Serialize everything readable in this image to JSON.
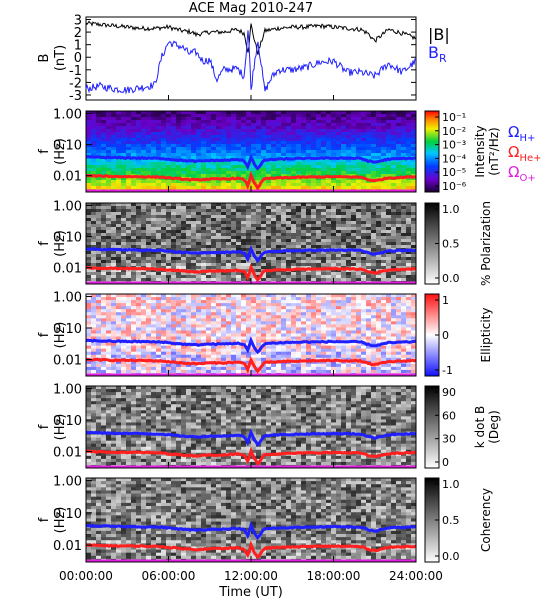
{
  "figure": {
    "title": "ACE Mag 2010-247",
    "xlabel": "Time (UT)",
    "xticks": [
      "00:00:00",
      "06:00:00",
      "12:00:00",
      "18:00:00",
      "24:00:00"
    ]
  },
  "legend": {
    "top": [
      {
        "text": "|B|",
        "color": "#000000"
      },
      {
        "text": "B",
        "sub": "R",
        "color": "#1f1fff"
      }
    ],
    "gyro": [
      {
        "text": "Ω",
        "sub": "H+",
        "color": "#1f1fff"
      },
      {
        "text": "Ω",
        "sub": "He+",
        "color": "#ff1f1f"
      },
      {
        "text": "Ω",
        "sub": "O+",
        "color": "#e11fe1"
      }
    ]
  },
  "colors": {
    "blue": "#1f1fff",
    "red": "#ff1f1f",
    "magenta": "#e11fe1"
  },
  "chart_data": [
    {
      "type": "line",
      "ylabel": "B",
      "yunit": "(nT)",
      "ylim": [
        -3.4,
        3.2
      ],
      "yticks": [
        "3",
        "2",
        "1",
        "0",
        "-1",
        "-2",
        "-3"
      ],
      "xlim": [
        0,
        24
      ],
      "series": [
        {
          "color": "#000000",
          "x": [
            0,
            1,
            2,
            3,
            4,
            5,
            6,
            7,
            7.7,
            8,
            9,
            10,
            11,
            11.5,
            11.8,
            12,
            12.2,
            12.5,
            13,
            14,
            15,
            16,
            17,
            18,
            19,
            20,
            20.5,
            21,
            22,
            23,
            24
          ],
          "y": [
            2.7,
            2.6,
            2.5,
            2.4,
            2.3,
            2.3,
            2.4,
            2.1,
            2.0,
            1.8,
            2.0,
            2.0,
            2.2,
            1.9,
            0.4,
            2.6,
            1.6,
            0.3,
            2.1,
            2.3,
            2.4,
            2.4,
            2.5,
            2.4,
            2.3,
            2.2,
            1.9,
            1.3,
            2.2,
            1.9,
            1.5
          ]
        },
        {
          "color": "#1f1fff",
          "x": [
            0,
            1,
            2,
            3,
            4,
            5,
            5.5,
            6,
            7,
            7.5,
            8,
            8.5,
            9,
            9.5,
            10,
            11,
            11.5,
            11.8,
            12,
            12.2,
            12.5,
            13,
            13.5,
            14,
            15,
            16,
            17,
            18,
            19,
            20,
            21,
            22,
            23,
            24
          ],
          "y": [
            -2.5,
            -2.3,
            -2.5,
            -2.6,
            -2.4,
            -2.2,
            0.0,
            1.2,
            0.8,
            0.3,
            0.4,
            -0.3,
            -0.2,
            -1.8,
            -1.0,
            -0.9,
            -1.5,
            2.4,
            -2.6,
            -0.8,
            1.4,
            -2.7,
            -1.6,
            -1.0,
            -1.0,
            -0.8,
            -0.4,
            -0.3,
            -1.2,
            -1.2,
            -1.5,
            -0.5,
            -1.2,
            -0.3
          ]
        }
      ]
    },
    {
      "type": "heatmap",
      "ylabel": "f",
      "yunit": "(Hz)",
      "ylim_log": [
        0.003,
        1.2
      ],
      "yticks": [
        "1.00",
        "0.10",
        "0.01"
      ],
      "quantity": "Intensity (nT²/Hz)",
      "cbar_ticks": [
        "10⁻¹",
        "10⁻²",
        "10⁻³",
        "10⁻⁴",
        "10⁻⁵",
        "10⁻⁶"
      ]
    },
    {
      "type": "heatmap",
      "ylabel": "f",
      "yunit": "(Hz)",
      "ylim_log": [
        0.003,
        1.2
      ],
      "yticks": [
        "1.00",
        "0.10",
        "0.01"
      ],
      "quantity": "% Polarization",
      "cbar_ticks": [
        "1.0",
        "0.5",
        "0.0"
      ]
    },
    {
      "type": "heatmap",
      "ylabel": "f",
      "yunit": "(Hz)",
      "ylim_log": [
        0.003,
        1.2
      ],
      "yticks": [
        "1.00",
        "0.10",
        "0.01"
      ],
      "quantity": "Ellipticity",
      "cbar_ticks": [
        "1",
        "0",
        "-1"
      ]
    },
    {
      "type": "heatmap",
      "ylabel": "f",
      "yunit": "(Hz)",
      "ylim_log": [
        0.003,
        1.2
      ],
      "yticks": [
        "1.00",
        "0.10",
        "0.01"
      ],
      "quantity": "k dot B (Deg)",
      "cbar_ticks": [
        "90",
        "60",
        "30",
        "0"
      ]
    },
    {
      "type": "heatmap",
      "ylabel": "f",
      "yunit": "(Hz)",
      "ylim_log": [
        0.003,
        1.2
      ],
      "yticks": [
        "1.00",
        "0.10",
        "0.01"
      ],
      "quantity": "Coherency",
      "cbar_ticks": [
        "1.0",
        "0.5",
        "0.0"
      ]
    }
  ],
  "gyro_lines": {
    "H+": {
      "color": "#1f1fff",
      "x": [
        0,
        2,
        4,
        5.5,
        6,
        7,
        8,
        9,
        10,
        11,
        11.5,
        11.8,
        12,
        12.2,
        12.5,
        13,
        14,
        16,
        18,
        20,
        20.5,
        21,
        22,
        24
      ],
      "f": [
        0.04,
        0.038,
        0.037,
        0.036,
        0.034,
        0.031,
        0.029,
        0.031,
        0.031,
        0.033,
        0.03,
        0.018,
        0.04,
        0.025,
        0.016,
        0.032,
        0.034,
        0.036,
        0.037,
        0.036,
        0.03,
        0.027,
        0.034,
        0.037
      ]
    },
    "He+": {
      "color": "#ff1f1f",
      "x": [
        0,
        2,
        4,
        5.5,
        6,
        7,
        8,
        9,
        10,
        11,
        11.5,
        11.8,
        12,
        12.2,
        12.5,
        13,
        14,
        16,
        18,
        20,
        20.5,
        21,
        22,
        24
      ],
      "f": [
        0.01,
        0.0095,
        0.0093,
        0.009,
        0.0085,
        0.0078,
        0.0073,
        0.0078,
        0.0078,
        0.0083,
        0.0075,
        0.0045,
        0.01,
        0.0063,
        0.004,
        0.008,
        0.0085,
        0.009,
        0.0093,
        0.009,
        0.0075,
        0.0068,
        0.0085,
        0.0093
      ]
    }
  }
}
